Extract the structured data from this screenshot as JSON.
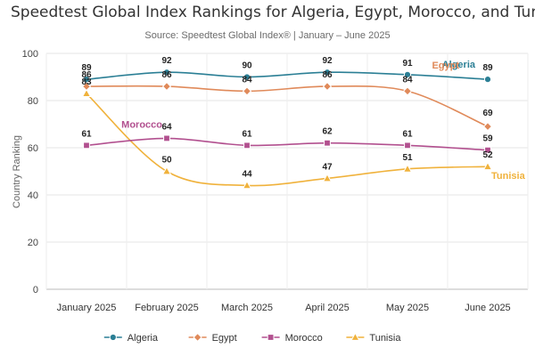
{
  "chart_data": {
    "type": "line",
    "title": "Speedtest Global Index Rankings for Algeria, Egypt, Morocco, and Tunisia",
    "subtitle": "Source: Speedtest Global Index® | January – June 2025",
    "xlabel": "",
    "ylabel": "Country Ranking",
    "ylim": [
      0,
      100
    ],
    "yticks": [
      0,
      20,
      40,
      60,
      80,
      100
    ],
    "grid": true,
    "legend_position": "bottom",
    "categories": [
      "January 2025",
      "February 2025",
      "March 2025",
      "April 2025",
      "May 2025",
      "June 2025"
    ],
    "series": [
      {
        "name": "Algeria",
        "color": "#2b7f95",
        "marker": "circle",
        "values": [
          89,
          92,
          90,
          92,
          91,
          89
        ]
      },
      {
        "name": "Egypt",
        "color": "#e08a5a",
        "marker": "diamond",
        "values": [
          86,
          86,
          84,
          86,
          84,
          69
        ]
      },
      {
        "name": "Morocco",
        "color": "#b2508f",
        "marker": "square",
        "values": [
          61,
          64,
          61,
          62,
          61,
          59
        ]
      },
      {
        "name": "Tunisia",
        "color": "#f0b23c",
        "marker": "triangle",
        "values": [
          83,
          50,
          44,
          47,
          51,
          52
        ]
      }
    ]
  }
}
